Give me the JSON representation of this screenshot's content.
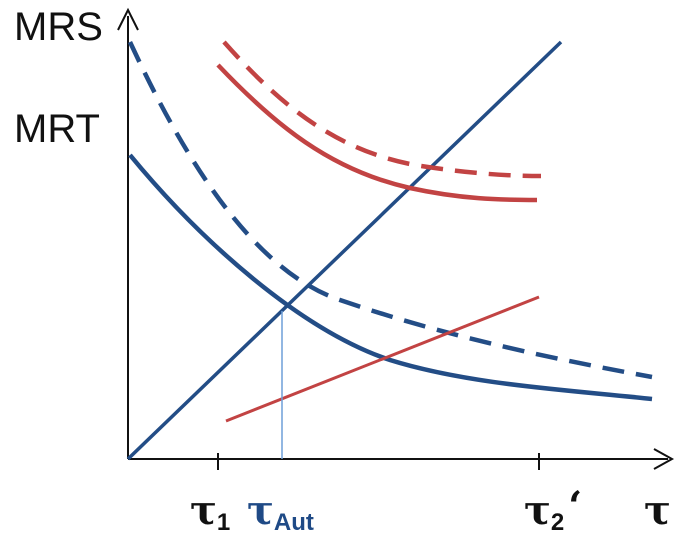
{
  "y_labels": {
    "mrs": "MRS",
    "mrt": "MRT"
  },
  "x_labels": {
    "tau1_main": "τ",
    "tau1_sub": "1",
    "tau_aut_main": "τ",
    "tau_aut_sub": "Aut",
    "tau2_main": "τ",
    "tau2_sub": "2",
    "tau2_prime": "‘",
    "tau_axis": "τ"
  },
  "colors": {
    "axis": "#111111",
    "blue": "#234d86",
    "red": "#c24343",
    "aut_line": "#6f9fd8",
    "aut_label": "#1f4a86"
  }
}
